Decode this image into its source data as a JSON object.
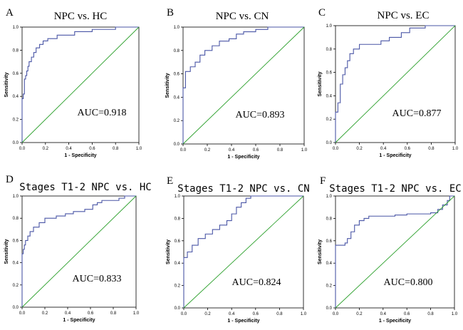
{
  "chart_data": [
    {
      "type": "line",
      "panel_letter": "A",
      "title": "NPC vs. HC",
      "xlabel": "1 - Specificity",
      "ylabel": "Sensitivity",
      "xlim": [
        0,
        1
      ],
      "ylim": [
        0,
        1
      ],
      "x_ticks": [
        "0.0",
        "0.2",
        "0.4",
        "0.6",
        "0.8",
        "1.0"
      ],
      "y_ticks": [
        "0.0",
        "0.2",
        "0.4",
        "0.6",
        "0.8",
        "1.0"
      ],
      "annotation": "AUC=0.918",
      "series": [
        {
          "name": "ROC curve",
          "color": "#4a56a6",
          "x": [
            0,
            0,
            0.01,
            0.01,
            0.02,
            0.02,
            0.03,
            0.03,
            0.04,
            0.04,
            0.05,
            0.05,
            0.06,
            0.06,
            0.08,
            0.08,
            0.1,
            0.1,
            0.12,
            0.12,
            0.15,
            0.15,
            0.18,
            0.18,
            0.22,
            0.22,
            0.3,
            0.3,
            0.45,
            0.45,
            0.6,
            0.6,
            0.8,
            0.8,
            1
          ],
          "y": [
            0,
            0.38,
            0.38,
            0.42,
            0.42,
            0.55,
            0.55,
            0.58,
            0.58,
            0.62,
            0.62,
            0.66,
            0.66,
            0.7,
            0.7,
            0.74,
            0.74,
            0.78,
            0.78,
            0.82,
            0.82,
            0.85,
            0.85,
            0.88,
            0.88,
            0.9,
            0.9,
            0.93,
            0.93,
            0.96,
            0.96,
            0.98,
            0.98,
            1,
            1
          ]
        },
        {
          "name": "Reference line",
          "color": "#2ca02c",
          "x": [
            0,
            1
          ],
          "y": [
            0,
            1
          ]
        }
      ]
    },
    {
      "type": "line",
      "panel_letter": "B",
      "title": "NPC vs. CN",
      "xlabel": "1 - Specificity",
      "ylabel": "Sensitivity",
      "xlim": [
        0,
        1
      ],
      "ylim": [
        0,
        1
      ],
      "x_ticks": [
        "0.0",
        "0.2",
        "0.4",
        "0.6",
        "0.8",
        "1.0"
      ],
      "y_ticks": [
        "0.0",
        "0.2",
        "0.4",
        "0.6",
        "0.8",
        "1.0"
      ],
      "annotation": "AUC=0.893",
      "series": [
        {
          "name": "ROC curve",
          "color": "#4a56a6",
          "x": [
            0,
            0,
            0.02,
            0.02,
            0.06,
            0.06,
            0.1,
            0.1,
            0.14,
            0.14,
            0.18,
            0.18,
            0.24,
            0.24,
            0.3,
            0.3,
            0.38,
            0.38,
            0.44,
            0.44,
            0.5,
            0.5,
            0.6,
            0.6,
            0.7,
            0.7,
            1
          ],
          "y": [
            0,
            0.48,
            0.48,
            0.62,
            0.62,
            0.66,
            0.66,
            0.7,
            0.7,
            0.76,
            0.76,
            0.8,
            0.8,
            0.84,
            0.84,
            0.88,
            0.88,
            0.9,
            0.9,
            0.94,
            0.94,
            0.96,
            0.96,
            0.98,
            0.98,
            1,
            1
          ]
        },
        {
          "name": "Reference line",
          "color": "#2ca02c",
          "x": [
            0,
            1
          ],
          "y": [
            0,
            1
          ]
        }
      ]
    },
    {
      "type": "line",
      "panel_letter": "C",
      "title": "NPC vs. EC",
      "xlabel": "1 - Specificity",
      "ylabel": "Sensitivity",
      "xlim": [
        0,
        1
      ],
      "ylim": [
        0,
        1
      ],
      "x_ticks": [
        "0.0",
        "0.2",
        "0.4",
        "0.6",
        "0.8",
        "1.0"
      ],
      "y_ticks": [
        "0.0",
        "0.2",
        "0.4",
        "0.6",
        "0.8",
        "1.0"
      ],
      "annotation": "AUC=0.877",
      "series": [
        {
          "name": "ROC curve",
          "color": "#4a56a6",
          "x": [
            0,
            0,
            0.02,
            0.02,
            0.04,
            0.04,
            0.06,
            0.06,
            0.08,
            0.08,
            0.1,
            0.1,
            0.12,
            0.12,
            0.15,
            0.15,
            0.2,
            0.2,
            0.38,
            0.38,
            0.45,
            0.45,
            0.55,
            0.55,
            0.62,
            0.62,
            0.75,
            0.75,
            1
          ],
          "y": [
            0,
            0.26,
            0.26,
            0.34,
            0.34,
            0.5,
            0.5,
            0.58,
            0.58,
            0.64,
            0.64,
            0.7,
            0.7,
            0.76,
            0.76,
            0.8,
            0.8,
            0.84,
            0.84,
            0.87,
            0.87,
            0.9,
            0.9,
            0.94,
            0.94,
            0.98,
            0.98,
            1,
            1
          ]
        },
        {
          "name": "Reference line",
          "color": "#2ca02c",
          "x": [
            0,
            1
          ],
          "y": [
            0,
            1
          ]
        }
      ]
    },
    {
      "type": "line",
      "panel_letter": "D",
      "title": "Stages T1-2 NPC vs. HC",
      "xlabel": "1 - Specificity",
      "ylabel": "Sensitivity",
      "xlim": [
        0,
        1
      ],
      "ylim": [
        0,
        1
      ],
      "x_ticks": [
        "0.0",
        "0.2",
        "0.4",
        "0.6",
        "0.8",
        "1.0"
      ],
      "y_ticks": [
        "0.0",
        "0.2",
        "0.4",
        "0.6",
        "0.8",
        "1.0"
      ],
      "annotation": "AUC=0.833",
      "series": [
        {
          "name": "ROC curve",
          "color": "#4a56a6",
          "x": [
            0,
            0,
            0.01,
            0.01,
            0.02,
            0.02,
            0.03,
            0.03,
            0.05,
            0.05,
            0.07,
            0.07,
            0.1,
            0.1,
            0.15,
            0.15,
            0.2,
            0.2,
            0.3,
            0.3,
            0.38,
            0.38,
            0.45,
            0.45,
            0.55,
            0.55,
            0.62,
            0.62,
            0.66,
            0.66,
            0.7,
            0.7,
            0.85,
            0.85,
            0.9,
            0.9,
            1
          ],
          "y": [
            0,
            0.48,
            0.48,
            0.52,
            0.52,
            0.56,
            0.56,
            0.6,
            0.6,
            0.64,
            0.64,
            0.68,
            0.68,
            0.72,
            0.72,
            0.76,
            0.76,
            0.8,
            0.8,
            0.82,
            0.82,
            0.84,
            0.84,
            0.86,
            0.86,
            0.88,
            0.88,
            0.92,
            0.92,
            0.94,
            0.94,
            0.96,
            0.96,
            0.98,
            0.98,
            1,
            1
          ]
        },
        {
          "name": "Reference line",
          "color": "#2ca02c",
          "x": [
            0,
            1
          ],
          "y": [
            0,
            1
          ]
        }
      ]
    },
    {
      "type": "line",
      "panel_letter": "E",
      "title": "Stages T1-2 NPC vs. CN",
      "xlabel": "1 - Specificity",
      "ylabel": "Sensitivity",
      "xlim": [
        0,
        1
      ],
      "ylim": [
        0,
        1
      ],
      "x_ticks": [
        "0.0",
        "0.2",
        "0.4",
        "0.6",
        "0.8",
        "1.0"
      ],
      "y_ticks": [
        "0.0",
        "0.2",
        "0.4",
        "0.6",
        "0.8",
        "1.0"
      ],
      "annotation": "AUC=0.824",
      "series": [
        {
          "name": "ROC curve",
          "color": "#4a56a6",
          "x": [
            0,
            0,
            0.03,
            0.03,
            0.07,
            0.07,
            0.12,
            0.12,
            0.18,
            0.18,
            0.24,
            0.24,
            0.3,
            0.3,
            0.36,
            0.36,
            0.4,
            0.4,
            0.44,
            0.44,
            0.48,
            0.48,
            0.52,
            0.52,
            0.56,
            0.56,
            1
          ],
          "y": [
            0,
            0.45,
            0.45,
            0.5,
            0.5,
            0.56,
            0.56,
            0.62,
            0.62,
            0.66,
            0.66,
            0.7,
            0.7,
            0.74,
            0.74,
            0.78,
            0.78,
            0.84,
            0.84,
            0.9,
            0.9,
            0.94,
            0.94,
            0.98,
            0.98,
            1,
            1
          ]
        },
        {
          "name": "Reference line",
          "color": "#2ca02c",
          "x": [
            0,
            1
          ],
          "y": [
            0,
            1
          ]
        }
      ]
    },
    {
      "type": "line",
      "panel_letter": "F",
      "title": "Stages T1-2 NPC vs. EC",
      "xlabel": "1 - Specificity",
      "ylabel": "Sensitivity",
      "xlim": [
        0,
        1
      ],
      "ylim": [
        0,
        1
      ],
      "x_ticks": [
        "0.0",
        "0.2",
        "0.4",
        "0.6",
        "0.8",
        "1.0"
      ],
      "y_ticks": [
        "0.0",
        "0.2",
        "0.4",
        "0.6",
        "0.8",
        "1.0"
      ],
      "annotation": "AUC=0.800",
      "series": [
        {
          "name": "ROC curve",
          "color": "#4a56a6",
          "x": [
            0,
            0,
            0.08,
            0.08,
            0.1,
            0.1,
            0.13,
            0.13,
            0.16,
            0.16,
            0.2,
            0.2,
            0.24,
            0.24,
            0.28,
            0.28,
            0.5,
            0.5,
            0.6,
            0.6,
            0.8,
            0.8,
            0.86,
            0.86,
            0.9,
            0.9,
            0.94,
            0.94,
            0.96,
            0.96,
            1
          ],
          "y": [
            0,
            0.56,
            0.56,
            0.58,
            0.58,
            0.62,
            0.62,
            0.68,
            0.68,
            0.74,
            0.74,
            0.78,
            0.78,
            0.8,
            0.8,
            0.82,
            0.82,
            0.83,
            0.83,
            0.84,
            0.84,
            0.85,
            0.85,
            0.88,
            0.88,
            0.92,
            0.92,
            0.96,
            0.96,
            1,
            1
          ]
        },
        {
          "name": "Reference line",
          "color": "#2ca02c",
          "x": [
            0,
            1
          ],
          "y": [
            0,
            1
          ]
        }
      ]
    }
  ]
}
